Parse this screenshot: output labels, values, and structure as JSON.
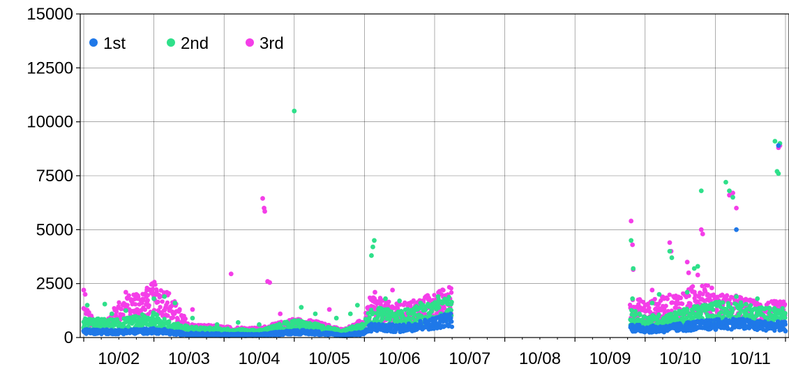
{
  "chart_data": {
    "type": "scatter",
    "grid": true,
    "legend_position": "top-left",
    "ylim": [
      0,
      15000
    ],
    "y_ticks": [
      "0",
      "2500",
      "5000",
      "7500",
      "10000",
      "12500",
      "15000"
    ],
    "x_tick_labels": [
      "10/02",
      "10/03",
      "10/04",
      "10/05",
      "10/06",
      "10/07",
      "10/08",
      "10/09",
      "10/10",
      "10/11"
    ],
    "xlim": [
      0.95,
      11.05
    ],
    "series": [
      {
        "name": "1st",
        "color": "#1f78e8",
        "band": [
          [
            1.0,
            300
          ],
          [
            1.5,
            280
          ],
          [
            2.0,
            330
          ],
          [
            2.2,
            250
          ],
          [
            2.5,
            170
          ],
          [
            3.0,
            140
          ],
          [
            3.5,
            120
          ],
          [
            4.0,
            280
          ],
          [
            4.3,
            240
          ],
          [
            4.7,
            110
          ],
          [
            5.0,
            230
          ],
          [
            5.1,
            520
          ],
          [
            5.5,
            450
          ],
          [
            6.0,
            720
          ],
          [
            6.2,
            900
          ],
          [
            6.25,
            900
          ],
          [
            8.8,
            500
          ],
          [
            9.0,
            420
          ],
          [
            9.3,
            430
          ],
          [
            9.6,
            560
          ],
          [
            10.0,
            650
          ],
          [
            10.3,
            700
          ],
          [
            10.6,
            600
          ],
          [
            11.0,
            560
          ]
        ],
        "points": [
          [
            1.02,
            360
          ],
          [
            1.6,
            310
          ],
          [
            2.15,
            380
          ],
          [
            2.6,
            200
          ],
          [
            3.2,
            170
          ],
          [
            3.9,
            260
          ],
          [
            4.6,
            140
          ],
          [
            5.2,
            480
          ],
          [
            5.8,
            640
          ],
          [
            6.1,
            830
          ],
          [
            9.1,
            520
          ],
          [
            9.5,
            480
          ],
          [
            9.9,
            640
          ],
          [
            10.3,
            5000
          ],
          [
            10.6,
            640
          ],
          [
            10.9,
            8900
          ],
          [
            11.0,
            300
          ]
        ]
      },
      {
        "name": "2nd",
        "color": "#2fe08a",
        "band": [
          [
            1.0,
            700
          ],
          [
            1.5,
            650
          ],
          [
            2.0,
            900
          ],
          [
            2.2,
            600
          ],
          [
            2.5,
            400
          ],
          [
            3.0,
            330
          ],
          [
            3.5,
            270
          ],
          [
            4.0,
            650
          ],
          [
            4.3,
            500
          ],
          [
            4.7,
            260
          ],
          [
            5.0,
            600
          ],
          [
            5.1,
            1100
          ],
          [
            5.5,
            950
          ],
          [
            6.0,
            1300
          ],
          [
            6.25,
            1500
          ],
          [
            8.8,
            1000
          ],
          [
            9.0,
            800
          ],
          [
            9.3,
            850
          ],
          [
            9.6,
            1050
          ],
          [
            10.0,
            1300
          ],
          [
            10.3,
            1300
          ],
          [
            10.6,
            1100
          ],
          [
            11.0,
            1050
          ]
        ],
        "points": [
          [
            1.05,
            1500
          ],
          [
            1.3,
            1550
          ],
          [
            1.4,
            1100
          ],
          [
            1.6,
            1250
          ],
          [
            2.0,
            1800
          ],
          [
            2.15,
            1900
          ],
          [
            2.3,
            1600
          ],
          [
            2.55,
            900
          ],
          [
            2.9,
            600
          ],
          [
            3.2,
            700
          ],
          [
            3.5,
            600
          ],
          [
            3.7,
            450
          ],
          [
            4.0,
            10500
          ],
          [
            4.1,
            1400
          ],
          [
            4.3,
            1100
          ],
          [
            4.6,
            900
          ],
          [
            4.8,
            1100
          ],
          [
            4.9,
            1500
          ],
          [
            5.1,
            3800
          ],
          [
            5.12,
            4200
          ],
          [
            5.14,
            4500
          ],
          [
            5.3,
            1800
          ],
          [
            5.5,
            1700
          ],
          [
            5.8,
            1600
          ],
          [
            6.05,
            1900
          ],
          [
            8.8,
            4500
          ],
          [
            8.82,
            1800
          ],
          [
            8.83,
            3200
          ],
          [
            9.1,
            1600
          ],
          [
            9.2,
            2000
          ],
          [
            9.35,
            4000
          ],
          [
            9.38,
            3700
          ],
          [
            9.6,
            2100
          ],
          [
            9.7,
            3200
          ],
          [
            9.75,
            3300
          ],
          [
            9.8,
            6800
          ],
          [
            10.15,
            7200
          ],
          [
            10.2,
            6800
          ],
          [
            10.25,
            6500
          ],
          [
            10.3,
            1900
          ],
          [
            10.6,
            1800
          ],
          [
            10.85,
            9100
          ],
          [
            10.88,
            7700
          ],
          [
            10.9,
            7600
          ],
          [
            10.92,
            9000
          ]
        ]
      },
      {
        "name": "3rd",
        "color": "#f43ee8",
        "band": [
          [
            1.0,
            1300
          ],
          [
            1.1,
            800
          ],
          [
            1.3,
            600
          ],
          [
            1.5,
            1300
          ],
          [
            1.7,
            1600
          ],
          [
            1.9,
            1800
          ],
          [
            2.0,
            2000
          ],
          [
            2.2,
            1700
          ],
          [
            2.5,
            500
          ],
          [
            3.0,
            400
          ],
          [
            3.5,
            350
          ],
          [
            4.0,
            700
          ],
          [
            4.3,
            600
          ],
          [
            4.7,
            300
          ],
          [
            5.0,
            700
          ],
          [
            5.1,
            1600
          ],
          [
            5.3,
            1300
          ],
          [
            5.5,
            1200
          ],
          [
            6.0,
            1600
          ],
          [
            6.25,
            1900
          ],
          [
            8.8,
            1500
          ],
          [
            9.0,
            1300
          ],
          [
            9.3,
            1500
          ],
          [
            9.6,
            1700
          ],
          [
            9.8,
            2100
          ],
          [
            10.0,
            1600
          ],
          [
            10.3,
            1500
          ],
          [
            10.6,
            1300
          ],
          [
            11.0,
            1300
          ]
        ],
        "points": [
          [
            1.0,
            2200
          ],
          [
            1.02,
            2000
          ],
          [
            1.6,
            2100
          ],
          [
            1.75,
            2000
          ],
          [
            1.9,
            2200
          ],
          [
            2.0,
            1900
          ],
          [
            2.25,
            900
          ],
          [
            2.55,
            1300
          ],
          [
            3.1,
            2950
          ],
          [
            3.55,
            6450
          ],
          [
            3.57,
            6000
          ],
          [
            3.58,
            5850
          ],
          [
            3.62,
            2600
          ],
          [
            3.65,
            2550
          ],
          [
            3.8,
            1100
          ],
          [
            4.5,
            1300
          ],
          [
            5.15,
            2100
          ],
          [
            5.4,
            2200
          ],
          [
            5.9,
            1950
          ],
          [
            8.8,
            5400
          ],
          [
            8.82,
            4300
          ],
          [
            8.83,
            3150
          ],
          [
            9.1,
            2200
          ],
          [
            9.35,
            4400
          ],
          [
            9.37,
            4000
          ],
          [
            9.6,
            3500
          ],
          [
            9.62,
            3000
          ],
          [
            9.75,
            2900
          ],
          [
            9.8,
            5000
          ],
          [
            9.82,
            4800
          ],
          [
            9.95,
            2300
          ],
          [
            10.2,
            6600
          ],
          [
            10.25,
            6700
          ],
          [
            10.3,
            6000
          ],
          [
            10.9,
            8800
          ],
          [
            10.92,
            8900
          ]
        ]
      }
    ]
  }
}
